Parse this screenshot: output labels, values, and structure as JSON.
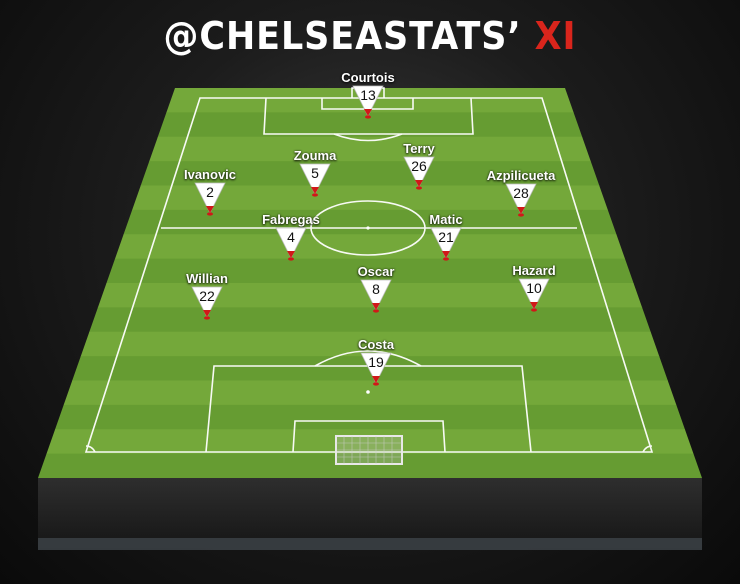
{
  "title": {
    "main": "@CHELSEASTATS’ ",
    "accent": "XI"
  },
  "colors": {
    "title": "#ffffff",
    "accent": "#d9251c",
    "pitch_light": "#74a83a",
    "pitch_dark": "#669c32",
    "marker_tip": "#d01818"
  },
  "players": [
    {
      "name": "Courtois",
      "number": "13"
    },
    {
      "name": "Ivanovic",
      "number": "2"
    },
    {
      "name": "Zouma",
      "number": "5"
    },
    {
      "name": "Terry",
      "number": "26"
    },
    {
      "name": "Azpilicueta",
      "number": "28"
    },
    {
      "name": "Fabregas",
      "number": "4"
    },
    {
      "name": "Matic",
      "number": "21"
    },
    {
      "name": "Willian",
      "number": "22"
    },
    {
      "name": "Oscar",
      "number": "8"
    },
    {
      "name": "Hazard",
      "number": "10"
    },
    {
      "name": "Costa",
      "number": "19"
    }
  ]
}
